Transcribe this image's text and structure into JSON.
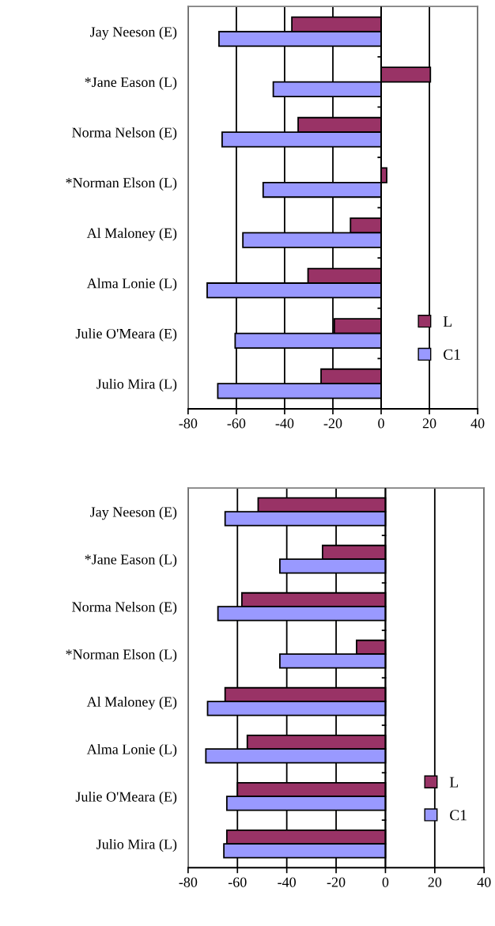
{
  "chart_data": [
    {
      "type": "bar",
      "orientation": "horizontal",
      "categories": [
        "Jay Neeson (E)",
        "*Jane Eason (L)",
        "Norma Nelson (E)",
        "*Norman Elson (L)",
        "Al Maloney (E)",
        "Alma Lonie (L)",
        "Julie O'Meara (E)",
        "Julio Mira (L)"
      ],
      "series": [
        {
          "name": "L",
          "color": "#993366",
          "values": [
            -37,
            20.4,
            -34.4,
            2.3,
            -12.7,
            -30.3,
            -19.4,
            -24.9
          ]
        },
        {
          "name": "C1",
          "color": "#9999ff",
          "values": [
            -67.2,
            -44.7,
            -65.9,
            -48.9,
            -57.3,
            -72.1,
            -60.5,
            -67.7
          ]
        }
      ],
      "xlim": [
        -80,
        40
      ],
      "xticks": [
        -80,
        -60,
        -40,
        -20,
        0,
        20,
        40
      ],
      "grid": "x",
      "legend": "bottom right"
    },
    {
      "type": "bar",
      "orientation": "horizontal",
      "categories": [
        "Jay Neeson (E)",
        "*Jane Eason (L)",
        "Norma Nelson (E)",
        "*Norman Elson (L)",
        "Al Maloney (E)",
        "Alma Lonie (L)",
        "Julie O'Meara (E)",
        "Julio Mira (L)"
      ],
      "series": [
        {
          "name": "L",
          "color": "#993366",
          "values": [
            -51.6,
            -25.5,
            -58.2,
            -11.7,
            -65.0,
            -56.0,
            -60.0,
            -64.3
          ]
        },
        {
          "name": "C1",
          "color": "#9999ff",
          "values": [
            -65.0,
            -42.8,
            -67.9,
            -42.8,
            -72.1,
            -72.8,
            -64.3,
            -65.5
          ]
        }
      ],
      "xlim": [
        -80,
        40
      ],
      "xticks": [
        -80,
        -60,
        -40,
        -20,
        0,
        20,
        40
      ],
      "grid": "x",
      "legend": "bottom right"
    }
  ]
}
